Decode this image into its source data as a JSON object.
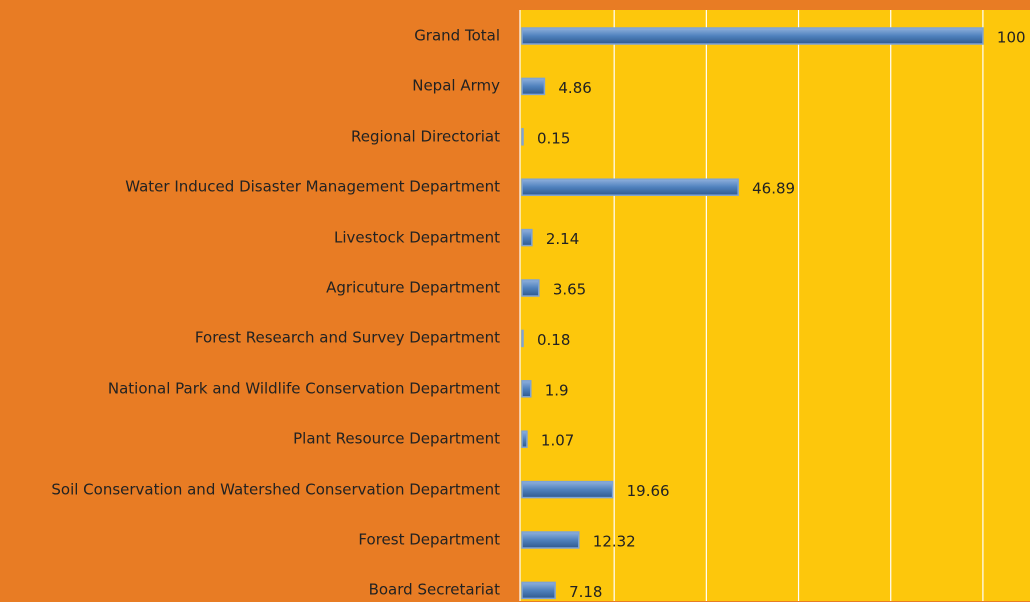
{
  "chart_data": {
    "type": "barh",
    "categories": [
      "Grand Total",
      "Nepal Army",
      "Regional Directoriat",
      "Water Induced Disaster Management Department",
      "Livestock Department",
      "Agricuture Department",
      "Forest Research and Survey Department",
      "National Park and Wildlife Conservation Department",
      "Plant Resource Department",
      "Soil Conservation and Watershed Conservation Department",
      "Forest Department",
      "Board Secretariat"
    ],
    "values": [
      100,
      4.86,
      0.15,
      46.89,
      2.14,
      3.65,
      0.18,
      1.9,
      1.07,
      19.66,
      12.32,
      7.18
    ],
    "color": "#4f81bd",
    "xlim": [
      0,
      110
    ],
    "xticks": [
      0,
      20,
      40,
      60,
      80,
      100
    ],
    "grid": true
  }
}
